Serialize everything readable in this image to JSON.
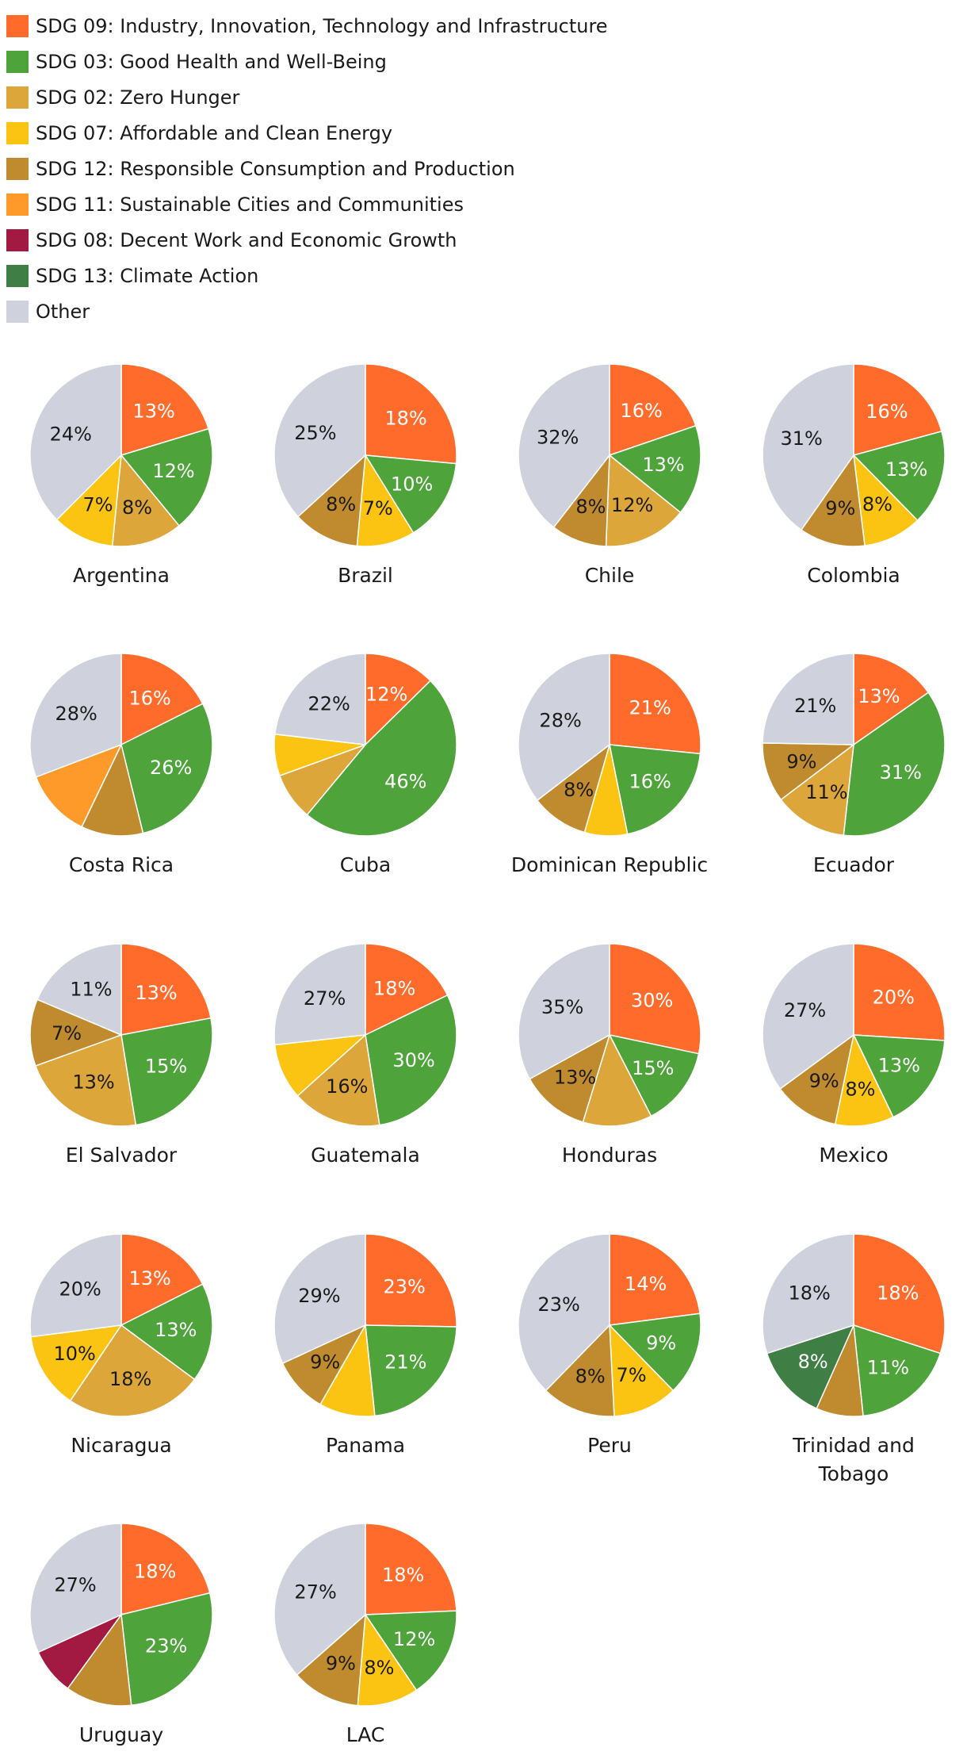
{
  "legend": [
    {
      "key": "sdg09",
      "label": "SDG 09: Industry, Innovation, Technology and Infrastructure",
      "color": "#FF6B2B"
    },
    {
      "key": "sdg03",
      "label": "SDG 03: Good Health and Well-Being",
      "color": "#4EA33A"
    },
    {
      "key": "sdg02",
      "label": "SDG 02: Zero Hunger",
      "color": "#DCA63A"
    },
    {
      "key": "sdg07",
      "label": "SDG 07: Affordable and Clean Energy",
      "color": "#FBC412"
    },
    {
      "key": "sdg12",
      "label": "SDG 12: Responsible Consumption and Production",
      "color": "#C08A2F"
    },
    {
      "key": "sdg11",
      "label": "SDG 11: Sustainable Cities and Communities",
      "color": "#FD9A2A"
    },
    {
      "key": "sdg08",
      "label": "SDG 08: Decent Work and Economic Growth",
      "color": "#A21942"
    },
    {
      "key": "sdg13",
      "label": "SDG 13: Climate Action",
      "color": "#3F7E44"
    },
    {
      "key": "other",
      "label": "Other",
      "color": "#CFD2DC"
    }
  ],
  "chart_data": {
    "type": "pie",
    "pies": [
      {
        "name": "Argentina",
        "slices": [
          {
            "key": "sdg09",
            "value": 13,
            "label": "13%"
          },
          {
            "key": "sdg03",
            "value": 12,
            "label": "12%"
          },
          {
            "key": "sdg02",
            "value": 8,
            "label": "8%"
          },
          {
            "key": "sdg07",
            "value": 7,
            "label": "7%"
          },
          {
            "key": "other",
            "value": 24,
            "label": "24%"
          }
        ]
      },
      {
        "name": "Brazil",
        "slices": [
          {
            "key": "sdg09",
            "value": 18,
            "label": "18%"
          },
          {
            "key": "sdg03",
            "value": 10,
            "label": "10%"
          },
          {
            "key": "sdg07",
            "value": 7,
            "label": "7%"
          },
          {
            "key": "sdg12",
            "value": 8,
            "label": "8%"
          },
          {
            "key": "other",
            "value": 25,
            "label": "25%"
          }
        ]
      },
      {
        "name": "Chile",
        "slices": [
          {
            "key": "sdg09",
            "value": 16,
            "label": "16%"
          },
          {
            "key": "sdg03",
            "value": 13,
            "label": "13%"
          },
          {
            "key": "sdg02",
            "value": 12,
            "label": "12%"
          },
          {
            "key": "sdg12",
            "value": 8,
            "label": "8%"
          },
          {
            "key": "other",
            "value": 32,
            "label": "32%"
          }
        ]
      },
      {
        "name": "Colombia",
        "slices": [
          {
            "key": "sdg09",
            "value": 16,
            "label": "16%"
          },
          {
            "key": "sdg03",
            "value": 13,
            "label": "13%"
          },
          {
            "key": "sdg07",
            "value": 8,
            "label": "8%"
          },
          {
            "key": "sdg12",
            "value": 9,
            "label": "9%"
          },
          {
            "key": "other",
            "value": 31,
            "label": "31%"
          }
        ]
      },
      {
        "name": "Costa Rica",
        "slices": [
          {
            "key": "sdg09",
            "value": 16,
            "label": "16%"
          },
          {
            "key": "sdg03",
            "value": 26,
            "label": "26%"
          },
          {
            "key": "sdg12",
            "value": 10,
            "label": ""
          },
          {
            "key": "sdg11",
            "value": 11,
            "label": ""
          },
          {
            "key": "other",
            "value": 28,
            "label": "28%"
          }
        ]
      },
      {
        "name": "Cuba",
        "slices": [
          {
            "key": "sdg09",
            "value": 12,
            "label": "12%"
          },
          {
            "key": "sdg03",
            "value": 46,
            "label": "46%"
          },
          {
            "key": "sdg02",
            "value": 8,
            "label": ""
          },
          {
            "key": "sdg07",
            "value": 7,
            "label": ""
          },
          {
            "key": "other",
            "value": 22,
            "label": "22%"
          }
        ]
      },
      {
        "name": "Dominican Republic",
        "slices": [
          {
            "key": "sdg09",
            "value": 21,
            "label": "21%"
          },
          {
            "key": "sdg03",
            "value": 16,
            "label": "16%"
          },
          {
            "key": "sdg07",
            "value": 6,
            "label": ""
          },
          {
            "key": "sdg12",
            "value": 8,
            "label": "8%"
          },
          {
            "key": "other",
            "value": 28,
            "label": "28%"
          }
        ]
      },
      {
        "name": "Ecuador",
        "slices": [
          {
            "key": "sdg09",
            "value": 13,
            "label": "13%"
          },
          {
            "key": "sdg03",
            "value": 31,
            "label": "31%"
          },
          {
            "key": "sdg02",
            "value": 11,
            "label": "11%"
          },
          {
            "key": "sdg12",
            "value": 9,
            "label": "9%"
          },
          {
            "key": "other",
            "value": 21,
            "label": "21%"
          }
        ]
      },
      {
        "name": "El Salvador",
        "slices": [
          {
            "key": "sdg09",
            "value": 13,
            "label": "13%"
          },
          {
            "key": "sdg03",
            "value": 15,
            "label": "15%"
          },
          {
            "key": "sdg02",
            "value": 13,
            "label": "13%"
          },
          {
            "key": "sdg12",
            "value": 7,
            "label": "7%"
          },
          {
            "key": "other",
            "value": 11,
            "label": "11%"
          }
        ]
      },
      {
        "name": "Guatemala",
        "slices": [
          {
            "key": "sdg09",
            "value": 18,
            "label": "18%"
          },
          {
            "key": "sdg03",
            "value": 30,
            "label": "30%"
          },
          {
            "key": "sdg02",
            "value": 16,
            "label": "16%"
          },
          {
            "key": "sdg07",
            "value": 10,
            "label": ""
          },
          {
            "key": "other",
            "value": 27,
            "label": "27%"
          }
        ]
      },
      {
        "name": "Honduras",
        "slices": [
          {
            "key": "sdg09",
            "value": 30,
            "label": "30%"
          },
          {
            "key": "sdg03",
            "value": 15,
            "label": "15%"
          },
          {
            "key": "sdg02",
            "value": 13,
            "label": ""
          },
          {
            "key": "sdg12",
            "value": 13,
            "label": "13%"
          },
          {
            "key": "other",
            "value": 35,
            "label": "35%"
          }
        ]
      },
      {
        "name": "Mexico",
        "slices": [
          {
            "key": "sdg09",
            "value": 20,
            "label": "20%"
          },
          {
            "key": "sdg03",
            "value": 13,
            "label": "13%"
          },
          {
            "key": "sdg07",
            "value": 8,
            "label": "8%"
          },
          {
            "key": "sdg12",
            "value": 9,
            "label": "9%"
          },
          {
            "key": "other",
            "value": 27,
            "label": "27%"
          }
        ]
      },
      {
        "name": "Nicaragua",
        "slices": [
          {
            "key": "sdg09",
            "value": 13,
            "label": "13%"
          },
          {
            "key": "sdg03",
            "value": 13,
            "label": "13%"
          },
          {
            "key": "sdg02",
            "value": 18,
            "label": "18%"
          },
          {
            "key": "sdg07",
            "value": 10,
            "label": "10%"
          },
          {
            "key": "other",
            "value": 20,
            "label": "20%"
          }
        ]
      },
      {
        "name": "Panama",
        "slices": [
          {
            "key": "sdg09",
            "value": 23,
            "label": "23%"
          },
          {
            "key": "sdg03",
            "value": 21,
            "label": "21%"
          },
          {
            "key": "sdg07",
            "value": 9,
            "label": ""
          },
          {
            "key": "sdg12",
            "value": 9,
            "label": "9%"
          },
          {
            "key": "other",
            "value": 29,
            "label": "29%"
          }
        ]
      },
      {
        "name": "Peru",
        "slices": [
          {
            "key": "sdg09",
            "value": 14,
            "label": "14%"
          },
          {
            "key": "sdg03",
            "value": 9,
            "label": "9%"
          },
          {
            "key": "sdg07",
            "value": 7,
            "label": "7%"
          },
          {
            "key": "sdg12",
            "value": 8,
            "label": "8%"
          },
          {
            "key": "other",
            "value": 23,
            "label": "23%"
          }
        ]
      },
      {
        "name": "Trinidad and Tobago",
        "slices": [
          {
            "key": "sdg09",
            "value": 18,
            "label": "18%"
          },
          {
            "key": "sdg03",
            "value": 11,
            "label": "11%"
          },
          {
            "key": "sdg12",
            "value": 5,
            "label": ""
          },
          {
            "key": "sdg13",
            "value": 8,
            "label": "8%"
          },
          {
            "key": "other",
            "value": 18,
            "label": "18%"
          }
        ]
      },
      {
        "name": "Uruguay",
        "slices": [
          {
            "key": "sdg09",
            "value": 18,
            "label": "18%"
          },
          {
            "key": "sdg03",
            "value": 23,
            "label": "23%"
          },
          {
            "key": "sdg12",
            "value": 10,
            "label": ""
          },
          {
            "key": "sdg08",
            "value": 7,
            "label": ""
          },
          {
            "key": "other",
            "value": 27,
            "label": "27%"
          }
        ]
      },
      {
        "name": "LAC",
        "slices": [
          {
            "key": "sdg09",
            "value": 18,
            "label": "18%"
          },
          {
            "key": "sdg03",
            "value": 12,
            "label": "12%"
          },
          {
            "key": "sdg07",
            "value": 8,
            "label": "8%"
          },
          {
            "key": "sdg12",
            "value": 9,
            "label": "9%"
          },
          {
            "key": "other",
            "value": 27,
            "label": "27%"
          }
        ]
      }
    ]
  }
}
